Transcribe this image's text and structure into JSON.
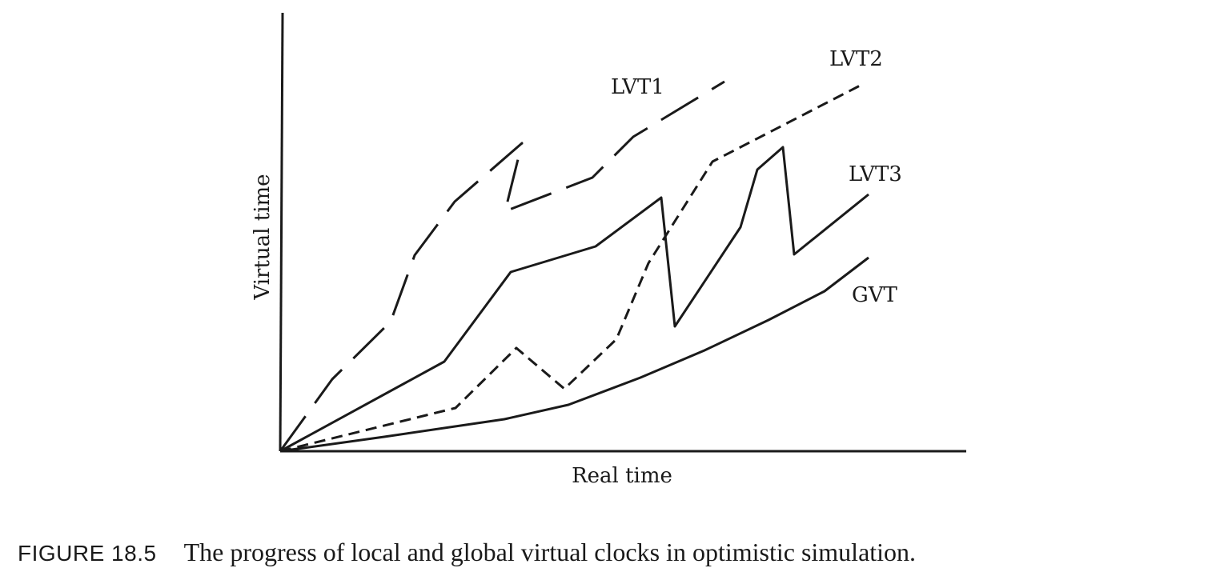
{
  "figure": {
    "number": "FIGURE 18.5",
    "caption": "The progress of local and global virtual clocks in optimistic simulation."
  },
  "axes": {
    "x_label": "Real time",
    "y_label": "Virtual time"
  },
  "series": [
    {
      "id": "lvt1",
      "label": "LVT1",
      "style": "long-dash",
      "points": [
        [
          0,
          0
        ],
        [
          65,
          90
        ],
        [
          138,
          162
        ],
        [
          168,
          245
        ],
        [
          218,
          312
        ],
        [
          302,
          385
        ],
        [
          281,
          300
        ],
        [
          390,
          342
        ],
        [
          441,
          393
        ],
        [
          555,
          462
        ]
      ]
    },
    {
      "id": "lvt2",
      "label": "LVT2",
      "style": "short-dash",
      "points": [
        [
          0,
          0
        ],
        [
          219,
          54
        ],
        [
          295,
          129
        ],
        [
          355,
          78
        ],
        [
          420,
          140
        ],
        [
          460,
          235
        ],
        [
          540,
          362
        ],
        [
          730,
          460
        ]
      ]
    },
    {
      "id": "lvt3",
      "label": "LVT3",
      "style": "solid",
      "points": [
        [
          0,
          0
        ],
        [
          205,
          112
        ],
        [
          288,
          224
        ],
        [
          394,
          256
        ],
        [
          476,
          317
        ],
        [
          493,
          156
        ],
        [
          575,
          280
        ],
        [
          596,
          352
        ],
        [
          628,
          380
        ],
        [
          642,
          246
        ],
        [
          735,
          321
        ]
      ]
    },
    {
      "id": "gvt",
      "label": "GVT",
      "style": "solid-curve",
      "points": [
        [
          0,
          0
        ],
        [
          130,
          18
        ],
        [
          280,
          40
        ],
        [
          360,
          58
        ],
        [
          450,
          92
        ],
        [
          530,
          126
        ],
        [
          610,
          164
        ],
        [
          680,
          200
        ],
        [
          735,
          242
        ]
      ]
    }
  ]
}
